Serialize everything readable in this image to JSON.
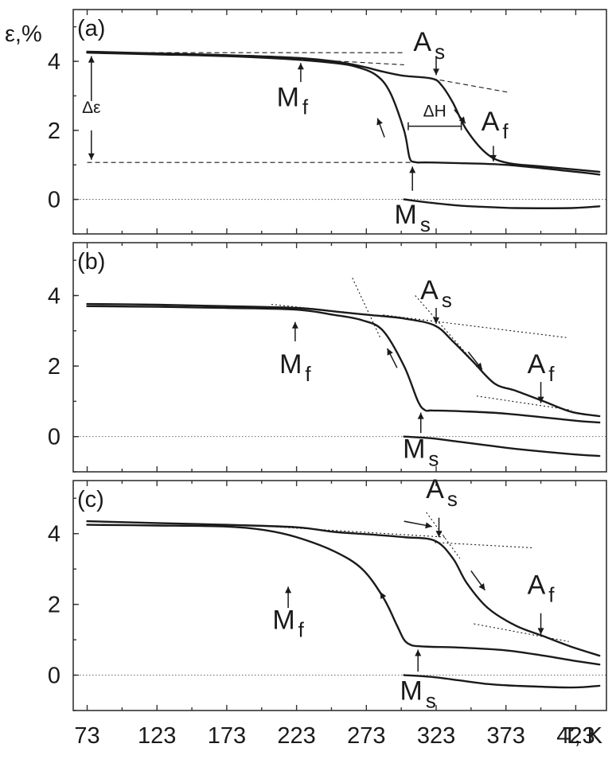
{
  "chart_data": {
    "type": "line",
    "xlabel": "T, K",
    "ylabel": "ε,%",
    "x_ticks": [
      73,
      123,
      173,
      223,
      273,
      323,
      373,
      423
    ],
    "x_tick_labels": [
      "73",
      "123",
      "173",
      "223",
      "273",
      "323",
      "373",
      "423"
    ],
    "xlim": [
      63,
      445
    ],
    "y_ticks": [
      0,
      2,
      4
    ],
    "y_tick_labels": [
      "0",
      "2",
      "4"
    ],
    "panels": [
      {
        "label": "(a)",
        "ylim": [
          -1.0,
          5.5
        ],
        "curves": [
          {
            "x": [
              73,
              123,
              173,
              223,
              250,
              265,
              280,
              290,
              300,
              304,
              308,
              312,
              318,
              340,
              373,
              423,
              440
            ],
            "y": [
              4.25,
              4.2,
              4.15,
              4.05,
              3.95,
              3.85,
              3.6,
              3.1,
              2.0,
              1.2,
              1.08,
              1.07,
              1.07,
              1.05,
              1.0,
              0.8,
              0.72
            ]
          },
          {
            "x": [
              73,
              123,
              173,
              223,
              250,
              270,
              285,
              300,
              320,
              327,
              335,
              345,
              360,
              375,
              400,
              440
            ],
            "y": [
              4.28,
              4.23,
              4.18,
              4.1,
              4.0,
              3.85,
              3.7,
              3.58,
              3.5,
              3.3,
              2.8,
              2.0,
              1.3,
              1.05,
              0.95,
              0.8
            ]
          },
          {
            "x": [
              300,
              320,
              340,
              360,
              380,
              420,
              440
            ],
            "y": [
              0.0,
              -0.1,
              -0.18,
              -0.22,
              -0.25,
              -0.25,
              -0.2
            ]
          }
        ],
        "annotations": [
          {
            "text": "Δε",
            "x": 76,
            "y": 2.5
          },
          {
            "text": "ΔH",
            "x": 322,
            "y": 2.4
          },
          {
            "text": "M",
            "sub": "f",
            "x": 220,
            "y": 2.7
          },
          {
            "text": "A",
            "sub": "s",
            "x": 318,
            "y": 4.3
          },
          {
            "text": "A",
            "sub": "f",
            "x": 365,
            "y": 2.0
          },
          {
            "text": "M",
            "sub": "s",
            "x": 306,
            "y": -0.7
          }
        ]
      },
      {
        "label": "(b)",
        "ylim": [
          -1.0,
          5.5
        ],
        "curves": [
          {
            "x": [
              73,
              123,
              173,
              223,
              250,
              270,
              285,
              300,
              310,
              315,
              320,
              340,
              373,
              423,
              440
            ],
            "y": [
              3.7,
              3.68,
              3.65,
              3.6,
              3.45,
              3.3,
              3.0,
              2.0,
              1.0,
              0.75,
              0.74,
              0.72,
              0.65,
              0.45,
              0.4
            ]
          },
          {
            "x": [
              73,
              123,
              173,
              223,
              250,
              275,
              300,
              322,
              335,
              350,
              365,
              380,
              400,
              420,
              440
            ],
            "y": [
              3.76,
              3.74,
              3.7,
              3.65,
              3.55,
              3.45,
              3.35,
              3.15,
              2.7,
              2.1,
              1.5,
              1.3,
              1.0,
              0.7,
              0.58
            ]
          },
          {
            "x": [
              300,
              320,
              340,
              360,
              380,
              420,
              440
            ],
            "y": [
              0.0,
              -0.05,
              -0.15,
              -0.25,
              -0.35,
              -0.5,
              -0.55
            ]
          }
        ],
        "annotations": [
          {
            "text": "M",
            "sub": "f",
            "x": 222,
            "y": 1.8
          },
          {
            "text": "A",
            "sub": "s",
            "x": 323,
            "y": 3.9
          },
          {
            "text": "A",
            "sub": "f",
            "x": 398,
            "y": 1.8
          },
          {
            "text": "M",
            "sub": "s",
            "x": 312,
            "y": -0.6
          }
        ]
      },
      {
        "label": "(c)",
        "ylim": [
          -1.0,
          5.5
        ],
        "curves": [
          {
            "x": [
              73,
              123,
              173,
              200,
              223,
              250,
              270,
              285,
              295,
              300,
              305,
              310,
              320,
              340,
              373,
              400,
              423,
              440
            ],
            "y": [
              4.25,
              4.23,
              4.2,
              4.1,
              3.9,
              3.5,
              3.0,
              2.2,
              1.4,
              1.0,
              0.85,
              0.82,
              0.8,
              0.78,
              0.7,
              0.55,
              0.4,
              0.3
            ]
          },
          {
            "x": [
              73,
              123,
              173,
              223,
              250,
              275,
              300,
              322,
              335,
              345,
              360,
              380,
              400,
              420,
              440
            ],
            "y": [
              4.35,
              4.3,
              4.25,
              4.18,
              4.05,
              3.98,
              3.9,
              3.8,
              3.3,
              2.6,
              1.9,
              1.4,
              1.1,
              0.8,
              0.55
            ]
          },
          {
            "x": [
              300,
              320,
              340,
              360,
              380,
              420,
              440
            ],
            "y": [
              0.0,
              -0.05,
              -0.15,
              -0.25,
              -0.3,
              -0.35,
              -0.3
            ]
          }
        ],
        "annotations": [
          {
            "text": "M",
            "sub": "f",
            "x": 217,
            "y": 1.3
          },
          {
            "text": "A",
            "sub": "s",
            "x": 327,
            "y": 5.0
          },
          {
            "text": "A",
            "sub": "f",
            "x": 398,
            "y": 2.3
          },
          {
            "text": "M",
            "sub": "s",
            "x": 310,
            "y": -0.7
          }
        ]
      }
    ],
    "grid": false,
    "legend": "none"
  }
}
